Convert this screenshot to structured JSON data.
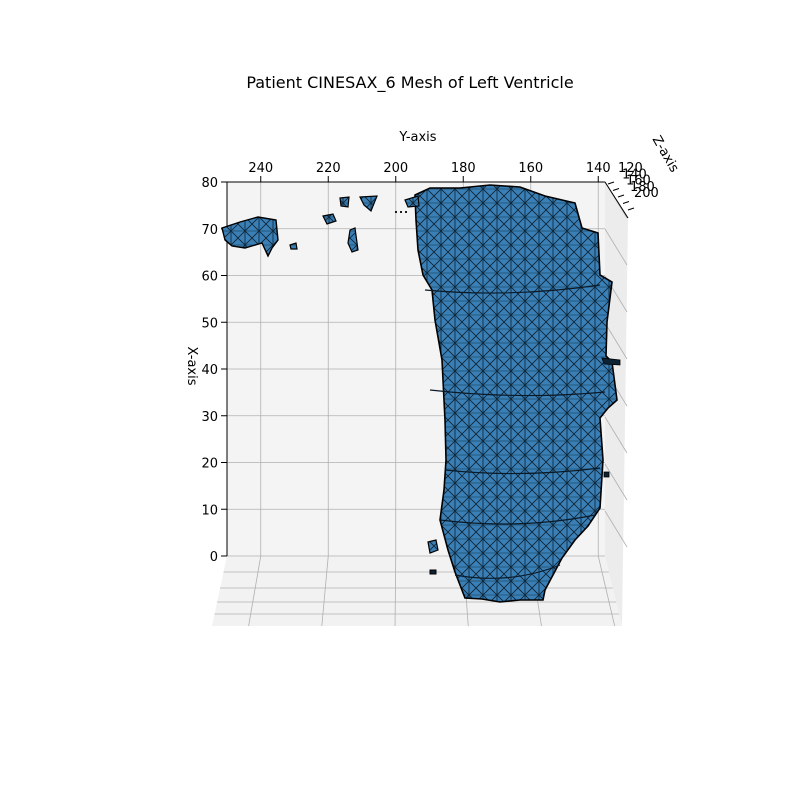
{
  "chart_data": {
    "type": "3d-mesh",
    "title": "Patient CINESAX_6 Mesh of Left Ventricle",
    "y_axis": {
      "label": "Y-axis",
      "ticks": [
        240,
        220,
        200,
        180,
        160,
        140
      ],
      "range": [
        250,
        138
      ]
    },
    "x_axis": {
      "label": "X-axis",
      "ticks": [
        0,
        10,
        20,
        30,
        40,
        50,
        60,
        70,
        80
      ],
      "range": [
        0,
        80
      ]
    },
    "z_axis": {
      "label": "Z-axis",
      "ticks": [
        120,
        140,
        160,
        180,
        200
      ],
      "range": [
        120,
        200
      ]
    },
    "mesh_color": "#3a7fb5",
    "edge_color": "#000000",
    "pane_color": "#f4f4f4",
    "grid": true,
    "view": "elevated, looking along X"
  }
}
